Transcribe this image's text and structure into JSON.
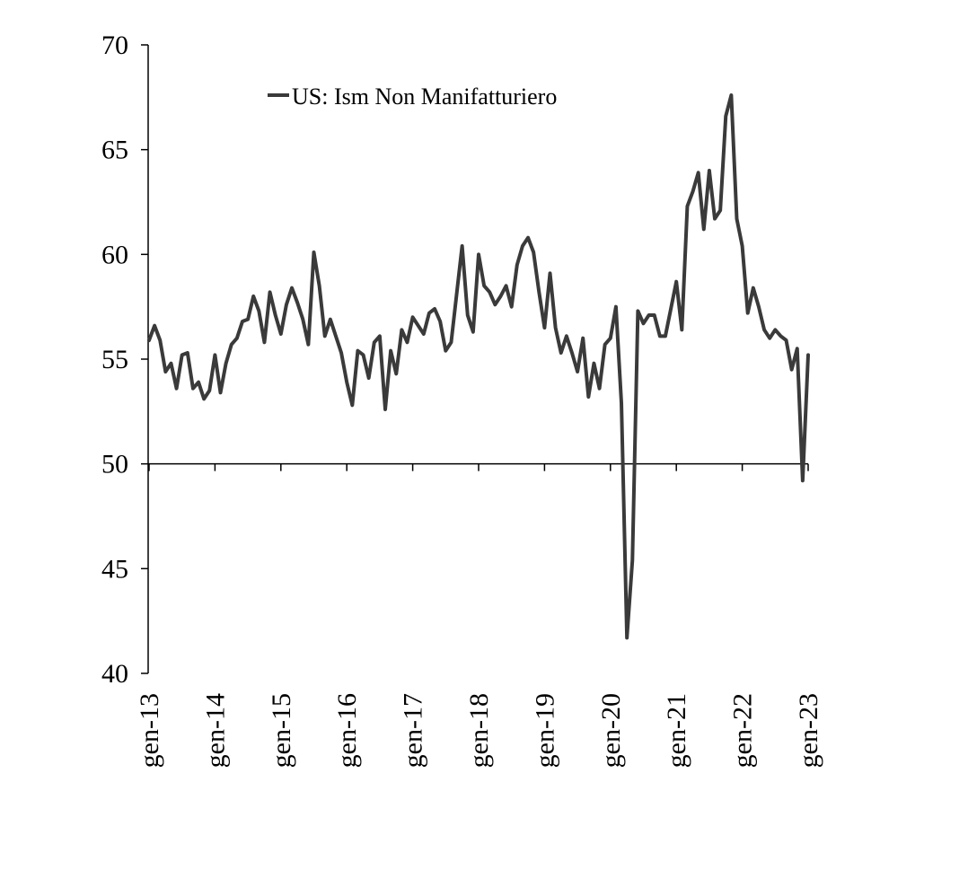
{
  "chart_data": {
    "type": "line",
    "title": "",
    "xlabel": "",
    "ylabel": "",
    "ylim": [
      40,
      70
    ],
    "yticks": [
      40,
      45,
      50,
      55,
      60,
      65,
      70
    ],
    "x_axis_crosses_at": 50,
    "grid": false,
    "legend_position": "top-left",
    "x_tick_labels": [
      "gen-13",
      "gen-14",
      "gen-15",
      "gen-16",
      "gen-17",
      "gen-18",
      "gen-19",
      "gen-20",
      "gen-21",
      "gen-22",
      "gen-23"
    ],
    "x_start": "2013-01",
    "x_end": "2023-01",
    "series": [
      {
        "name": "US: Ism Non Manifatturiero",
        "color": "#3a3a3a",
        "values": [
          55.9,
          56.6,
          55.9,
          54.4,
          54.8,
          53.6,
          55.2,
          55.3,
          53.6,
          53.9,
          53.1,
          53.5,
          55.2,
          53.4,
          54.8,
          55.7,
          56.0,
          56.8,
          56.9,
          58.0,
          57.3,
          55.8,
          58.2,
          57.1,
          56.2,
          57.6,
          58.4,
          57.7,
          56.9,
          55.7,
          60.1,
          58.5,
          56.1,
          56.9,
          56.1,
          55.3,
          53.9,
          52.8,
          55.4,
          55.2,
          54.1,
          55.8,
          56.1,
          52.6,
          55.4,
          54.3,
          56.4,
          55.8,
          57.0,
          56.6,
          56.2,
          57.2,
          57.4,
          56.8,
          55.4,
          55.8,
          58.1,
          60.4,
          57.1,
          56.3,
          60.0,
          58.5,
          58.2,
          57.6,
          58.0,
          58.5,
          57.5,
          59.5,
          60.4,
          60.8,
          60.1,
          58.2,
          56.5,
          59.1,
          56.5,
          55.3,
          56.1,
          55.3,
          54.4,
          56.0,
          53.2,
          54.8,
          53.6,
          55.7,
          56.0,
          57.5,
          52.9,
          41.7,
          45.4,
          57.3,
          56.7,
          57.1,
          57.1,
          56.1,
          56.1,
          57.4,
          58.7,
          56.4,
          62.3,
          63.0,
          63.9,
          61.2,
          64.0,
          61.7,
          62.1,
          66.6,
          67.6,
          61.7,
          60.4,
          57.2,
          58.4,
          57.5,
          56.4,
          56.0,
          56.4,
          56.1,
          55.9,
          54.5,
          55.5,
          49.2,
          55.2
        ]
      }
    ]
  }
}
